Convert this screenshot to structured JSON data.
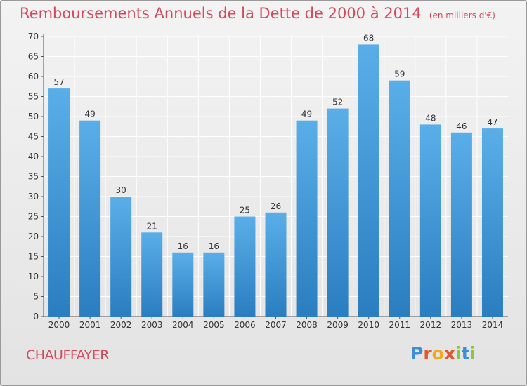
{
  "title": "Remboursements Annuels de la Dette de 2000 à 2014",
  "unit_label": "(en milliers d'€)",
  "place": "CHAUFFAYER",
  "logo": {
    "text": "Proxiti",
    "letters": [
      {
        "ch": "P",
        "color": "#3a8fd6"
      },
      {
        "ch": "r",
        "color": "#e2562c"
      },
      {
        "ch": "o",
        "color": "#f2a81d"
      },
      {
        "ch": "x",
        "color": "#e2562c"
      },
      {
        "ch": "i",
        "color": "#8cc63f"
      },
      {
        "ch": "t",
        "color": "#3a8fd6"
      },
      {
        "ch": "i",
        "color": "#8cc63f"
      }
    ]
  },
  "colors": {
    "title": "#d1495b",
    "bar_top": "#5aaee8",
    "bar_bottom": "#2a7ec0",
    "grid": "#ffffff",
    "axis": "#555555"
  },
  "chart_data": {
    "type": "bar",
    "categories": [
      "2000",
      "2001",
      "2002",
      "2003",
      "2004",
      "2005",
      "2006",
      "2007",
      "2008",
      "2009",
      "2010",
      "2011",
      "2012",
      "2013",
      "2014"
    ],
    "values": [
      57,
      49,
      30,
      21,
      16,
      16,
      25,
      26,
      49,
      52,
      68,
      59,
      48,
      46,
      47
    ],
    "ylim": [
      0,
      70
    ],
    "yticks": [
      0,
      5,
      10,
      15,
      20,
      25,
      30,
      35,
      40,
      45,
      50,
      55,
      60,
      65,
      70
    ],
    "grid": true,
    "data_labels": true
  }
}
